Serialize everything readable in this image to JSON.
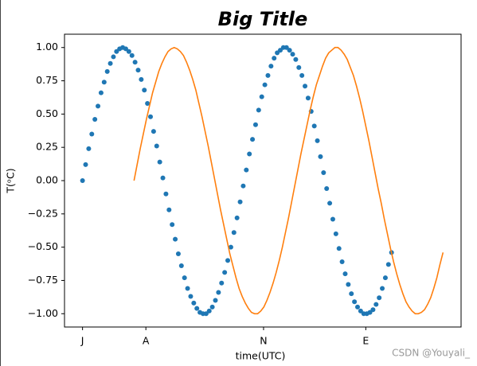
{
  "chart_data": {
    "type": "scatter",
    "title": "Big Title",
    "xlabel": "time(UTC)",
    "ylabel": "T(ᵒC)",
    "watermark": "CSDN @Youyali_",
    "xlim": [
      -0.7,
      14.7
    ],
    "ylim": [
      -1.1,
      1.1
    ],
    "xticks": [
      {
        "value": 0,
        "label": "J"
      },
      {
        "value": 2.46,
        "label": "A"
      },
      {
        "value": 7.03,
        "label": "N"
      },
      {
        "value": 11,
        "label": "E"
      }
    ],
    "yticks": [
      {
        "value": -1,
        "label": "−1.00"
      },
      {
        "value": -0.75,
        "label": "−0.75"
      },
      {
        "value": -0.5,
        "label": "−0.50"
      },
      {
        "value": -0.25,
        "label": "−0.25"
      },
      {
        "value": 0,
        "label": "0.00"
      },
      {
        "value": 0.25,
        "label": "0.25"
      },
      {
        "value": 0.5,
        "label": "0.50"
      },
      {
        "value": 0.75,
        "label": "0.75"
      },
      {
        "value": 1,
        "label": "1.00"
      }
    ],
    "series": [
      {
        "type": "scatter",
        "color": "#1f77b4",
        "x": [
          0,
          0.12,
          0.24,
          0.36,
          0.48,
          0.6,
          0.72,
          0.84,
          0.96,
          1.08,
          1.2,
          1.32,
          1.44,
          1.56,
          1.68,
          1.8,
          1.92,
          2.04,
          2.16,
          2.28,
          2.4,
          2.52,
          2.64,
          2.76,
          2.88,
          3,
          3.12,
          3.24,
          3.36,
          3.48,
          3.6,
          3.72,
          3.84,
          3.96,
          4.08,
          4.2,
          4.32,
          4.44,
          4.56,
          4.68,
          4.8,
          4.92,
          5.04,
          5.16,
          5.28,
          5.4,
          5.52,
          5.64,
          5.76,
          5.88,
          6,
          6.12,
          6.24,
          6.36,
          6.48,
          6.6,
          6.72,
          6.84,
          6.96,
          7.08,
          7.2,
          7.32,
          7.44,
          7.56,
          7.68,
          7.8,
          7.92,
          8.04,
          8.16,
          8.28,
          8.4,
          8.52,
          8.64,
          8.76,
          8.88,
          9,
          9.12,
          9.24,
          9.36,
          9.48,
          9.6,
          9.72,
          9.84,
          9.96,
          10.08,
          10.2,
          10.32,
          10.44,
          10.56,
          10.68,
          10.8,
          10.92,
          11.04,
          11.16,
          11.28,
          11.4,
          11.52,
          11.64,
          11.76,
          11.88,
          12
        ],
        "values": [
          0,
          0.12,
          0.24,
          0.35,
          0.46,
          0.56,
          0.66,
          0.74,
          0.82,
          0.88,
          0.93,
          0.97,
          0.99,
          1,
          0.99,
          0.97,
          0.94,
          0.89,
          0.83,
          0.76,
          0.68,
          0.58,
          0.48,
          0.37,
          0.26,
          0.14,
          0.02,
          -0.1,
          -0.22,
          -0.33,
          -0.44,
          -0.55,
          -0.64,
          -0.73,
          -0.81,
          -0.87,
          -0.92,
          -0.96,
          -0.99,
          -1,
          -1,
          -0.98,
          -0.95,
          -0.9,
          -0.84,
          -0.77,
          -0.69,
          -0.6,
          -0.5,
          -0.39,
          -0.28,
          -0.16,
          -0.04,
          0.08,
          0.2,
          0.31,
          0.42,
          0.53,
          0.63,
          0.72,
          0.79,
          0.86,
          0.92,
          0.96,
          0.98,
          1,
          1,
          0.98,
          0.95,
          0.91,
          0.85,
          0.79,
          0.71,
          0.62,
          0.52,
          0.41,
          0.3,
          0.18,
          0.06,
          -0.06,
          -0.17,
          -0.29,
          -0.4,
          -0.51,
          -0.61,
          -0.7,
          -0.78,
          -0.85,
          -0.91,
          -0.95,
          -0.98,
          -1,
          -1,
          -0.99,
          -0.97,
          -0.93,
          -0.88,
          -0.81,
          -0.73,
          -0.63,
          -0.54
        ]
      },
      {
        "type": "line",
        "color": "#ff7f0e",
        "x": [
          2,
          2.12,
          2.24,
          2.36,
          2.48,
          2.6,
          2.72,
          2.84,
          2.96,
          3.08,
          3.2,
          3.32,
          3.44,
          3.56,
          3.68,
          3.8,
          3.92,
          4.04,
          4.16,
          4.28,
          4.4,
          4.52,
          4.64,
          4.76,
          4.88,
          5,
          5.12,
          5.24,
          5.36,
          5.48,
          5.6,
          5.72,
          5.84,
          5.96,
          6.08,
          6.2,
          6.32,
          6.44,
          6.56,
          6.68,
          6.8,
          6.92,
          7.04,
          7.16,
          7.28,
          7.4,
          7.52,
          7.64,
          7.76,
          7.88,
          8,
          8.12,
          8.24,
          8.36,
          8.48,
          8.6,
          8.72,
          8.84,
          8.96,
          9.08,
          9.2,
          9.32,
          9.44,
          9.56,
          9.68,
          9.8,
          9.92,
          10.04,
          10.16,
          10.28,
          10.4,
          10.52,
          10.64,
          10.76,
          10.88,
          11,
          11.12,
          11.24,
          11.36,
          11.48,
          11.6,
          11.72,
          11.84,
          11.96,
          12.08,
          12.2,
          12.32,
          12.44,
          12.56,
          12.68,
          12.8,
          12.92,
          13.04,
          13.16,
          13.28,
          13.4,
          13.52,
          13.64,
          13.76,
          13.88,
          14
        ],
        "values": [
          0,
          0.12,
          0.24,
          0.35,
          0.46,
          0.56,
          0.66,
          0.74,
          0.82,
          0.88,
          0.93,
          0.97,
          0.99,
          1,
          0.99,
          0.97,
          0.94,
          0.89,
          0.83,
          0.76,
          0.68,
          0.58,
          0.48,
          0.37,
          0.26,
          0.14,
          0.02,
          -0.1,
          -0.22,
          -0.33,
          -0.44,
          -0.55,
          -0.64,
          -0.73,
          -0.81,
          -0.87,
          -0.92,
          -0.96,
          -0.99,
          -1,
          -1,
          -0.98,
          -0.95,
          -0.9,
          -0.84,
          -0.77,
          -0.69,
          -0.6,
          -0.5,
          -0.39,
          -0.28,
          -0.16,
          -0.04,
          0.08,
          0.2,
          0.31,
          0.42,
          0.53,
          0.63,
          0.72,
          0.79,
          0.86,
          0.92,
          0.96,
          0.98,
          1,
          1,
          0.98,
          0.95,
          0.91,
          0.85,
          0.79,
          0.71,
          0.62,
          0.52,
          0.41,
          0.3,
          0.18,
          0.06,
          -0.06,
          -0.17,
          -0.29,
          -0.4,
          -0.51,
          -0.61,
          -0.7,
          -0.78,
          -0.85,
          -0.91,
          -0.95,
          -0.98,
          -1,
          -1,
          -0.99,
          -0.97,
          -0.93,
          -0.88,
          -0.81,
          -0.73,
          -0.63,
          -0.54
        ]
      }
    ]
  }
}
